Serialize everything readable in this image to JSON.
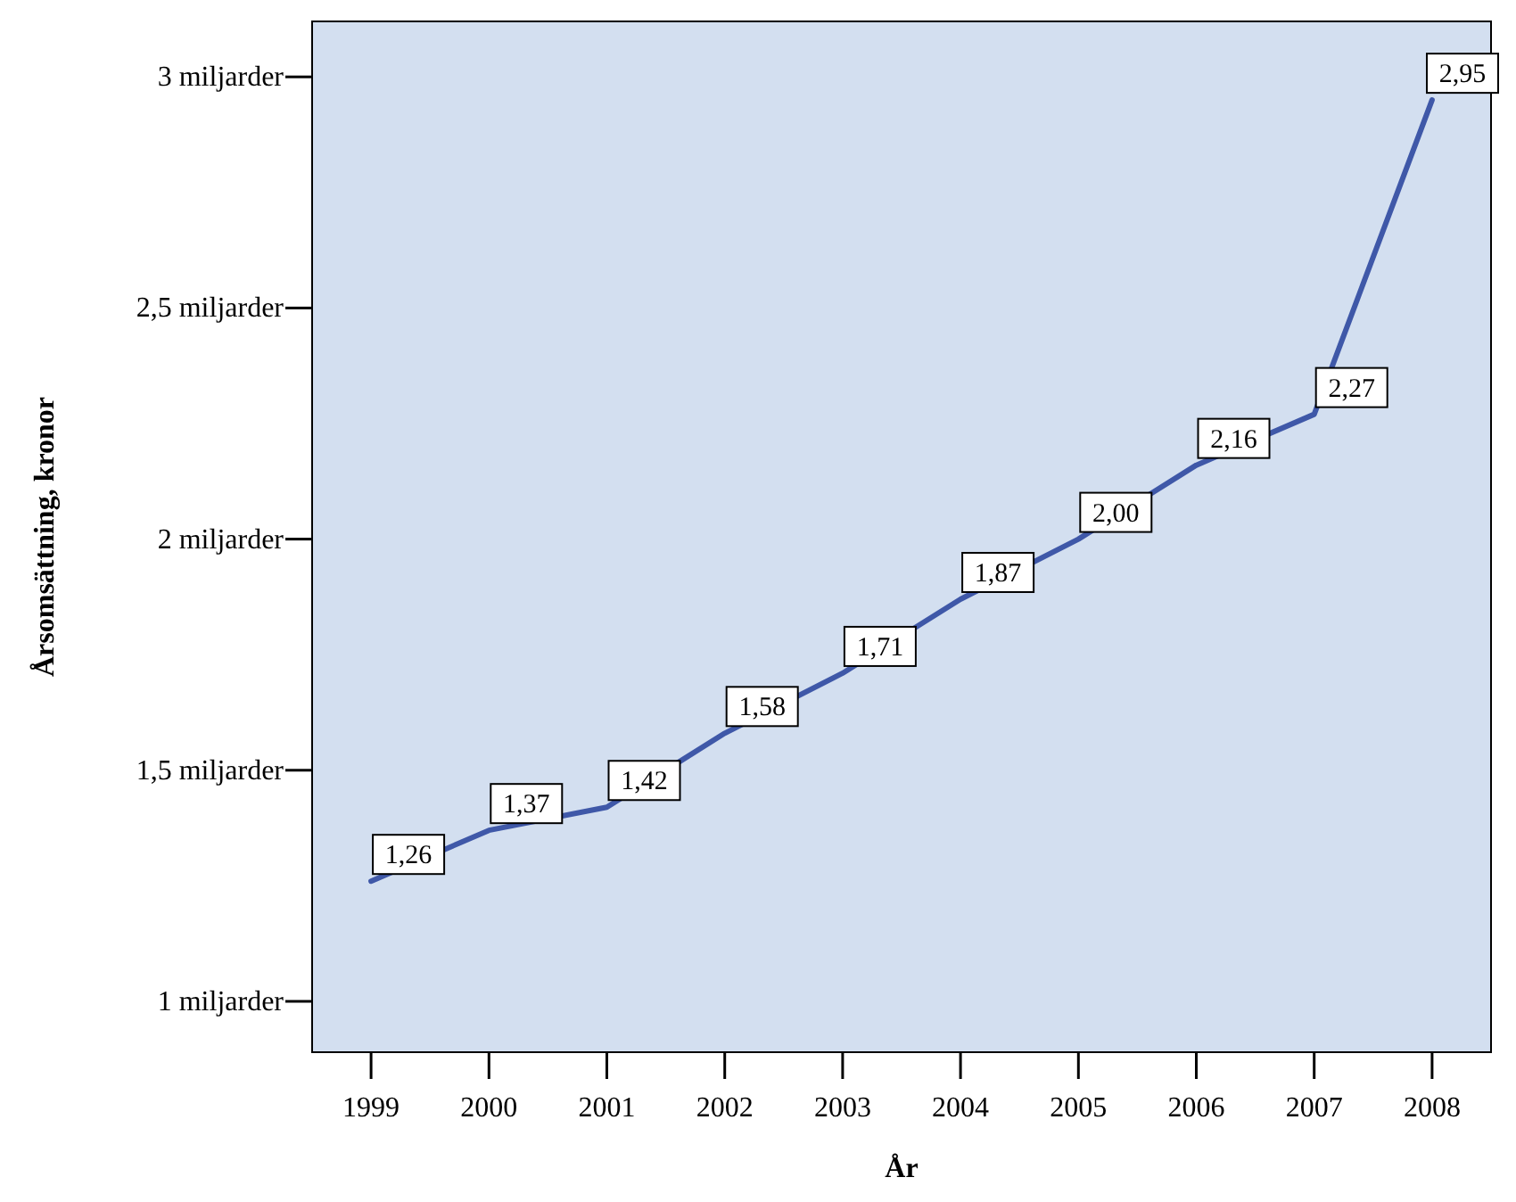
{
  "chart_data": {
    "type": "line",
    "xlabel": "År",
    "ylabel": "Årsomsättning, kronor",
    "x": [
      1999,
      2000,
      2001,
      2002,
      2003,
      2004,
      2005,
      2006,
      2007,
      2008
    ],
    "series": [
      {
        "color": "#3f58a8",
        "values": [
          1.26,
          1.37,
          1.42,
          1.58,
          1.71,
          1.87,
          2.0,
          2.16,
          2.27,
          2.95
        ],
        "value_labels": [
          "1,26",
          "1,37",
          "1,42",
          "1,58",
          "1,71",
          "1,87",
          "2,00",
          "2,16",
          "2,27",
          "2,95"
        ]
      }
    ],
    "xlim": [
      1998.5,
      2008.5
    ],
    "xticks": [
      1999,
      2000,
      2001,
      2002,
      2003,
      2004,
      2005,
      2006,
      2007,
      2008
    ],
    "ylim": [
      0.89,
      3.12
    ],
    "yticks": [
      {
        "value": 1,
        "label": "1 miljarder"
      },
      {
        "value": 1.5,
        "label": "1,5 miljarder"
      },
      {
        "value": 2,
        "label": "2 miljarder"
      },
      {
        "value": 2.5,
        "label": "2,5 miljarder"
      },
      {
        "value": 3,
        "label": "3 miljarder"
      }
    ],
    "grid": false,
    "marker": "none",
    "line_style": "solid"
  }
}
